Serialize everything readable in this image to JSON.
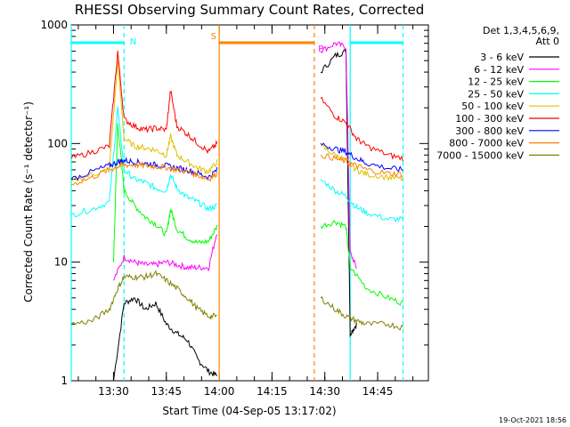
{
  "chart_data": {
    "type": "line",
    "title": "RHESSI Observing Summary Count Rates, Corrected",
    "xlabel": "Start Time (04-Sep-05 13:17:02)",
    "ylabel": "Corrected Count Rate (s⁻¹ detector⁻¹)",
    "y_scale": "log",
    "ylim": [
      1,
      1000
    ],
    "xlim": [
      13.3,
      14.99
    ],
    "x_ticks": [
      {
        "value": 13.5,
        "label": "13:30"
      },
      {
        "value": 13.75,
        "label": "13:45"
      },
      {
        "value": 14.0,
        "label": "14:00"
      },
      {
        "value": 14.25,
        "label": "14:15"
      },
      {
        "value": 14.5,
        "label": "14:30"
      },
      {
        "value": 14.75,
        "label": "14:45"
      }
    ],
    "y_ticks": [
      {
        "value": 1,
        "label": "1"
      },
      {
        "value": 10,
        "label": "10"
      },
      {
        "value": 100,
        "label": "100"
      },
      {
        "value": 1000,
        "label": "1000"
      }
    ],
    "legend_header": [
      "Det 1,3,4,5,6,9,",
      "Att 0"
    ],
    "legend_position": "right",
    "series": [
      {
        "name": "3 - 6 keV",
        "color": "#000000",
        "x": [
          13.5,
          13.55,
          13.6,
          13.65,
          13.7,
          13.75,
          13.8,
          13.85,
          13.9,
          13.95,
          13.99,
          14.48,
          14.55,
          14.6,
          14.62,
          14.65
        ],
        "y": [
          1,
          4.5,
          5,
          4,
          4.5,
          3,
          2.5,
          2.2,
          1.5,
          1.2,
          1.1,
          400,
          550,
          600,
          2.5,
          3
        ]
      },
      {
        "name": "6 - 12 keV",
        "color": "#ff00ff",
        "x": [
          13.5,
          13.55,
          13.6,
          13.65,
          13.7,
          13.75,
          13.8,
          13.85,
          13.9,
          13.95,
          13.99,
          14.48,
          14.55,
          14.6,
          14.62,
          14.65
        ],
        "y": [
          7,
          11,
          10,
          9.5,
          9.5,
          10,
          9.5,
          9,
          9,
          9,
          18,
          600,
          700,
          650,
          12,
          9
        ]
      },
      {
        "name": "12 - 25 keV",
        "color": "#00ff00",
        "x": [
          13.5,
          13.52,
          13.55,
          13.6,
          13.65,
          13.7,
          13.75,
          13.77,
          13.8,
          13.85,
          13.9,
          13.95,
          13.99,
          14.48,
          14.55,
          14.6,
          14.62,
          14.7,
          14.8,
          14.87
        ],
        "y": [
          10,
          150,
          40,
          30,
          24,
          21,
          17,
          28,
          19,
          16,
          14.5,
          15,
          20,
          20,
          22,
          20,
          9,
          6,
          5,
          4.5
        ]
      },
      {
        "name": "25 - 50 keV",
        "color": "#00ffff",
        "x": [
          13.3,
          13.4,
          13.48,
          13.52,
          13.55,
          13.6,
          13.65,
          13.7,
          13.75,
          13.77,
          13.8,
          13.85,
          13.9,
          13.95,
          13.99,
          14.48,
          14.55,
          14.6,
          14.65,
          14.7,
          14.8,
          14.87
        ],
        "y": [
          25,
          28,
          32,
          200,
          60,
          50,
          47,
          42,
          40,
          55,
          42,
          35,
          32,
          28,
          30,
          50,
          40,
          36,
          29,
          26,
          23,
          23
        ]
      },
      {
        "name": "50 - 100 keV",
        "color": "#e0c000",
        "x": [
          13.3,
          13.4,
          13.48,
          13.52,
          13.55,
          13.6,
          13.65,
          13.7,
          13.75,
          13.77,
          13.8,
          13.85,
          13.9,
          13.95,
          13.99,
          14.48,
          14.55,
          14.6,
          14.65,
          14.7,
          14.8,
          14.87
        ],
        "y": [
          48,
          55,
          60,
          500,
          110,
          95,
          92,
          88,
          80,
          115,
          80,
          70,
          62,
          58,
          70,
          95,
          80,
          72,
          60,
          55,
          52,
          50
        ]
      },
      {
        "name": "100 - 300 keV",
        "color": "#ff0000",
        "x": [
          13.3,
          13.4,
          13.48,
          13.52,
          13.55,
          13.6,
          13.65,
          13.7,
          13.75,
          13.77,
          13.8,
          13.85,
          13.9,
          13.95,
          13.99,
          14.48,
          14.55,
          14.6,
          14.65,
          14.7,
          14.8,
          14.87
        ],
        "y": [
          75,
          85,
          95,
          600,
          160,
          140,
          130,
          135,
          130,
          280,
          140,
          120,
          100,
          85,
          100,
          240,
          170,
          150,
          110,
          95,
          80,
          75
        ]
      },
      {
        "name": "300 - 800 keV",
        "color": "#0000ff",
        "x": [
          13.3,
          13.4,
          13.48,
          13.52,
          13.55,
          13.6,
          13.65,
          13.7,
          13.75,
          13.8,
          13.85,
          13.9,
          13.95,
          13.99,
          14.48,
          14.55,
          14.6,
          14.65,
          14.7,
          14.8,
          14.87
        ],
        "y": [
          50,
          58,
          65,
          70,
          72,
          70,
          68,
          66,
          65,
          62,
          60,
          56,
          52,
          60,
          100,
          90,
          85,
          75,
          68,
          62,
          60
        ]
      },
      {
        "name": "800 - 7000 keV",
        "color": "#ff8000",
        "x": [
          13.3,
          13.4,
          13.48,
          13.52,
          13.55,
          13.6,
          13.65,
          13.7,
          13.75,
          13.8,
          13.85,
          13.9,
          13.95,
          13.99,
          14.48,
          14.55,
          14.6,
          14.65,
          14.7,
          14.8,
          14.87
        ],
        "y": [
          45,
          52,
          60,
          64,
          66,
          66,
          65,
          64,
          63,
          60,
          58,
          54,
          50,
          56,
          80,
          75,
          70,
          65,
          60,
          56,
          55
        ]
      },
      {
        "name": "7000 - 15000 keV",
        "color": "#808000",
        "x": [
          13.3,
          13.4,
          13.48,
          13.52,
          13.55,
          13.6,
          13.65,
          13.7,
          13.75,
          13.8,
          13.85,
          13.9,
          13.95,
          13.99,
          14.48,
          14.55,
          14.6,
          14.65,
          14.7,
          14.8,
          14.87
        ],
        "y": [
          3,
          3.2,
          4,
          6,
          7.5,
          7.5,
          7.5,
          8,
          7,
          6,
          5,
          4,
          3.5,
          3.5,
          5,
          4,
          3.5,
          3.2,
          3,
          3,
          2.8
        ]
      }
    ],
    "flags": [
      {
        "letter": "N",
        "color": "#00ffff",
        "segments": [
          [
            13.3,
            13.55
          ],
          [
            14.62,
            14.87
          ]
        ],
        "dash_lines": [
          13.55,
          14.87
        ],
        "solid_lines": [
          13.3,
          14.62
        ]
      },
      {
        "letter": "S",
        "color": "#ff8000",
        "segments": [
          [
            14.0,
            14.45
          ]
        ],
        "dash_lines": [
          14.45
        ],
        "solid_lines": [
          14.0
        ]
      },
      {
        "letter": "P",
        "color": "#ff00ff",
        "segments": [],
        "dash_lines": [],
        "solid_lines": []
      }
    ],
    "footer_date": "19-Oct-2021 18:56"
  }
}
